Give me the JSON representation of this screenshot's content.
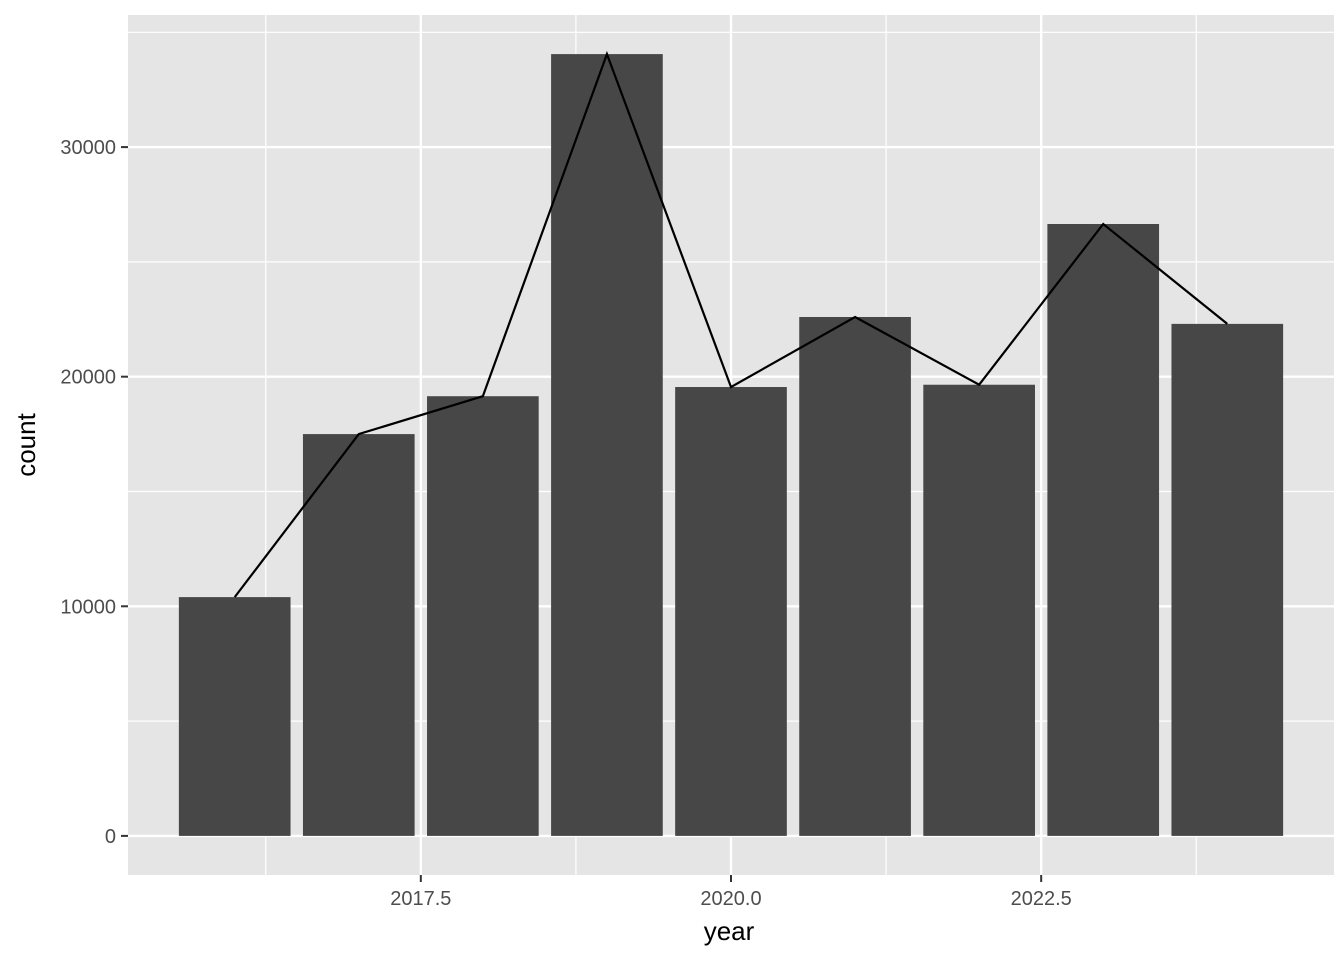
{
  "colors": {
    "panel_background": "#e5e5e5",
    "grid_major": "#ffffff",
    "bar_fill": "#474747",
    "line_color": "#000000",
    "tick_text": "#4d4d4d"
  },
  "chart_data": {
    "type": "bar",
    "x": [
      2016,
      2017,
      2018,
      2019,
      2020,
      2021,
      2022,
      2023,
      2024
    ],
    "series": [
      {
        "type": "bar",
        "values": [
          10400,
          17500,
          19150,
          34050,
          19550,
          22600,
          19650,
          26650,
          22300
        ]
      },
      {
        "type": "line",
        "values": [
          10400,
          17500,
          19150,
          34050,
          19550,
          22600,
          19650,
          26650,
          22300
        ]
      }
    ],
    "xlabel": "year",
    "ylabel": "count",
    "xticks": [
      {
        "value": 2017.5,
        "label": "2017.5"
      },
      {
        "value": 2020.0,
        "label": "2020.0"
      },
      {
        "value": 2022.5,
        "label": "2022.5"
      }
    ],
    "yticks": [
      {
        "value": 0,
        "label": "0"
      },
      {
        "value": 10000,
        "label": "10000"
      },
      {
        "value": 20000,
        "label": "20000"
      },
      {
        "value": 30000,
        "label": "30000"
      }
    ],
    "xlim": [
      2015.14,
      2024.86
    ],
    "ylim": [
      -1703,
      35753
    ],
    "grid": true,
    "legend": "none"
  }
}
